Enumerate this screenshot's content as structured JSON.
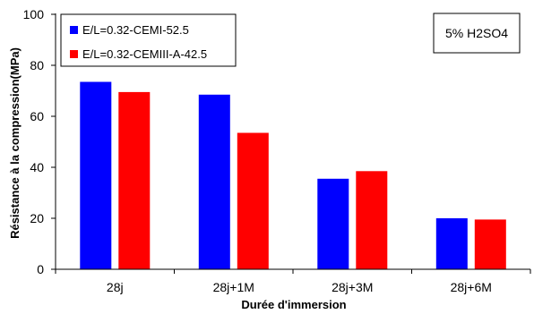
{
  "chart_data": {
    "type": "bar",
    "categories": [
      "28j",
      "28j+1M",
      "28j+3M",
      "28j+6M"
    ],
    "series": [
      {
        "name": "E/L=0.32-CEMI-52.5",
        "color": "#0000ff",
        "values": [
          73.5,
          68.5,
          35.5,
          20
        ]
      },
      {
        "name": "E/L=0.32-CEMIII-A-42.5",
        "color": "#ff0000",
        "values": [
          69.5,
          53.5,
          38.5,
          19.5
        ]
      }
    ],
    "title": "",
    "xlabel": "Durée d'immersion",
    "ylabel": "Résistance à la compression(MPa)",
    "ylim": [
      0,
      100
    ],
    "yticks": [
      0,
      20,
      40,
      60,
      80,
      100
    ],
    "annotation": "5% H2SO4",
    "legend_position": "top-left",
    "grid": false
  }
}
